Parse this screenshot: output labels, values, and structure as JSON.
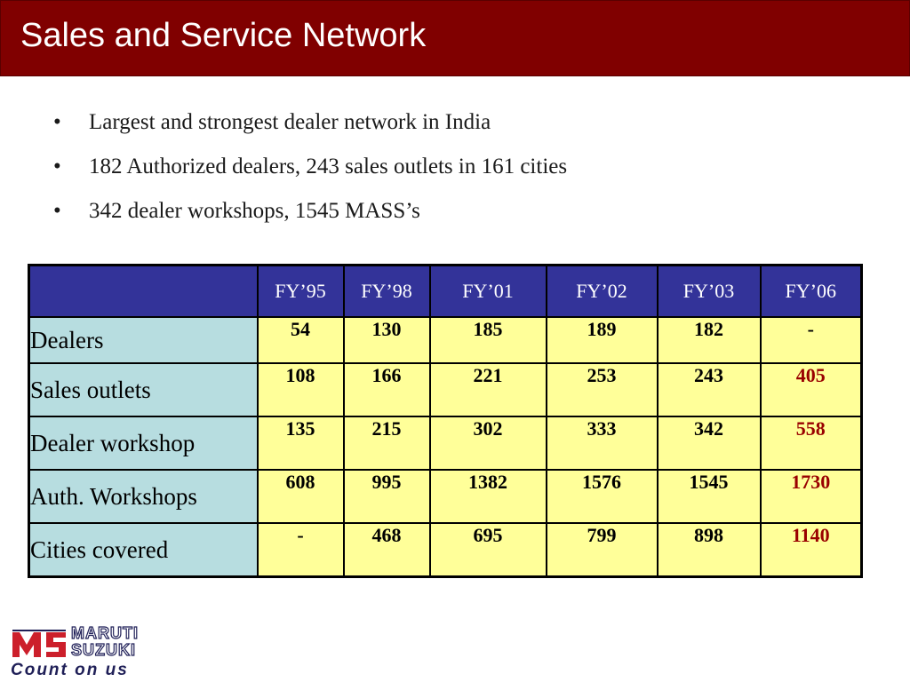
{
  "slide": {
    "title": "Sales and Service Network",
    "bullets": [
      "Largest and strongest dealer network in India",
      "182 Authorized dealers, 243 sales outlets in 161 cities",
      "342 dealer workshops, 1545 MASS’s"
    ],
    "bullet_glyph": "•"
  },
  "table": {
    "corner": "",
    "columns": [
      "FY’95",
      "FY’98",
      "FY’01",
      "FY’02",
      "FY’03",
      "FY’06"
    ],
    "rows": [
      {
        "label": "Dealers",
        "values": [
          "54",
          "130",
          "185",
          "189",
          "182",
          "-"
        ]
      },
      {
        "label": "Sales outlets",
        "values": [
          "108",
          "166",
          "221",
          "253",
          "243",
          "405"
        ]
      },
      {
        "label": "Dealer workshop",
        "values": [
          "135",
          "215",
          "302",
          "333",
          "342",
          "558"
        ]
      },
      {
        "label": "Auth. Workshops",
        "values": [
          "608",
          "995",
          "1382",
          "1576",
          "1545",
          "1730"
        ]
      },
      {
        "label": "Cities covered",
        "values": [
          "-",
          "468",
          "695",
          "799",
          "898",
          "1140"
        ]
      }
    ],
    "colors": {
      "header_bg": "#333399",
      "label_bg": "#b7dde0",
      "cell_bg": "#ffff99",
      "highlight_text": "#990000"
    }
  },
  "logo": {
    "brand_line1": "MARUTI",
    "brand_line2": "SUZUKI",
    "tagline": "Count on us",
    "colors": {
      "red": "#cc1f2b",
      "navy": "#1f1f57"
    }
  },
  "theme": {
    "title_bar": "#800000"
  }
}
